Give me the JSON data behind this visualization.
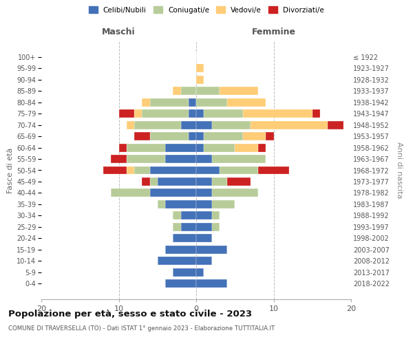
{
  "age_groups": [
    "0-4",
    "5-9",
    "10-14",
    "15-19",
    "20-24",
    "25-29",
    "30-34",
    "35-39",
    "40-44",
    "45-49",
    "50-54",
    "55-59",
    "60-64",
    "65-69",
    "70-74",
    "75-79",
    "80-84",
    "85-89",
    "90-94",
    "95-99",
    "100+"
  ],
  "birth_years": [
    "2018-2022",
    "2013-2017",
    "2008-2012",
    "2003-2007",
    "1998-2002",
    "1993-1997",
    "1988-1992",
    "1983-1987",
    "1978-1982",
    "1973-1977",
    "1968-1972",
    "1963-1967",
    "1958-1962",
    "1953-1957",
    "1948-1952",
    "1943-1947",
    "1938-1942",
    "1933-1937",
    "1928-1932",
    "1923-1927",
    "≤ 1922"
  ],
  "maschi": {
    "celibi": [
      4,
      3,
      5,
      4,
      3,
      2,
      2,
      4,
      6,
      5,
      6,
      4,
      4,
      1,
      2,
      1,
      1,
      0,
      0,
      0,
      0
    ],
    "coniugati": [
      0,
      0,
      0,
      0,
      0,
      1,
      1,
      1,
      5,
      1,
      2,
      5,
      5,
      5,
      6,
      6,
      5,
      2,
      0,
      0,
      0
    ],
    "vedovi": [
      0,
      0,
      0,
      0,
      0,
      0,
      0,
      0,
      0,
      0,
      1,
      0,
      0,
      0,
      1,
      1,
      1,
      1,
      0,
      0,
      0
    ],
    "divorziati": [
      0,
      0,
      0,
      0,
      0,
      0,
      0,
      0,
      0,
      1,
      3,
      2,
      1,
      2,
      0,
      2,
      0,
      0,
      0,
      0,
      0
    ]
  },
  "femmine": {
    "nubili": [
      4,
      1,
      2,
      4,
      2,
      2,
      2,
      2,
      2,
      2,
      3,
      2,
      1,
      1,
      2,
      1,
      0,
      0,
      0,
      0,
      0
    ],
    "coniugate": [
      0,
      0,
      0,
      0,
      0,
      1,
      1,
      3,
      6,
      2,
      5,
      7,
      4,
      5,
      5,
      5,
      4,
      3,
      0,
      0,
      0
    ],
    "vedove": [
      0,
      0,
      0,
      0,
      0,
      0,
      0,
      0,
      0,
      0,
      0,
      0,
      3,
      3,
      10,
      9,
      5,
      5,
      1,
      1,
      0
    ],
    "divorziate": [
      0,
      0,
      0,
      0,
      0,
      0,
      0,
      0,
      0,
      3,
      4,
      0,
      1,
      1,
      2,
      1,
      0,
      0,
      0,
      0,
      0
    ]
  },
  "colors": {
    "celibi": "#4472b8",
    "coniugati": "#b8cc99",
    "vedovi": "#ffcc77",
    "divorziati": "#cc2222"
  },
  "xlim": 20,
  "title": "Popolazione per età, sesso e stato civile - 2023",
  "subtitle": "COMUNE DI TRAVERSELLA (TO) - Dati ISTAT 1° gennaio 2023 - Elaborazione TUTTITALIA.IT",
  "ylabel_left": "Fasce di età",
  "ylabel_right": "Anni di nascita",
  "xlabel_left": "Maschi",
  "xlabel_right": "Femmine",
  "legend_labels": [
    "Celibi/Nubili",
    "Coniugati/e",
    "Vedovi/e",
    "Divorziati/e"
  ]
}
